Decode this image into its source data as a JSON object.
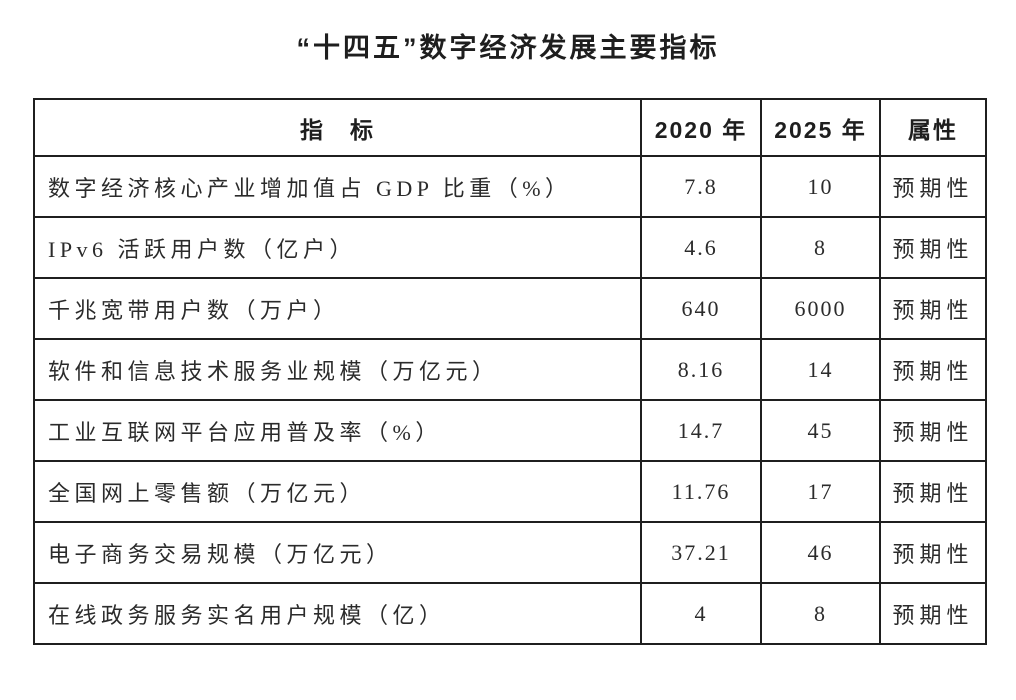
{
  "title": "“十四五”数字经济发展主要指标",
  "colors": {
    "background": "#ffffff",
    "text": "#2b2b2b",
    "border": "#1f1f1f"
  },
  "table": {
    "headers": {
      "indicator": "指　标",
      "y2020": "2020 年",
      "y2025": "2025 年",
      "attribute": "属性"
    },
    "rows": [
      {
        "indicator": "数字经济核心产业增加值占 GDP 比重（%）",
        "y2020": "7.8",
        "y2025": "10",
        "attribute": "预期性"
      },
      {
        "indicator": "IPv6 活跃用户数（亿户）",
        "y2020": "4.6",
        "y2025": "8",
        "attribute": "预期性"
      },
      {
        "indicator": "千兆宽带用户数（万户）",
        "y2020": "640",
        "y2025": "6000",
        "attribute": "预期性"
      },
      {
        "indicator": "软件和信息技术服务业规模（万亿元）",
        "y2020": "8.16",
        "y2025": "14",
        "attribute": "预期性"
      },
      {
        "indicator": "工业互联网平台应用普及率（%）",
        "y2020": "14.7",
        "y2025": "45",
        "attribute": "预期性"
      },
      {
        "indicator": "全国网上零售额（万亿元）",
        "y2020": "11.76",
        "y2025": "17",
        "attribute": "预期性"
      },
      {
        "indicator": "电子商务交易规模（万亿元）",
        "y2020": "37.21",
        "y2025": "46",
        "attribute": "预期性"
      },
      {
        "indicator": "在线政务服务实名用户规模（亿）",
        "y2020": "4",
        "y2025": "8",
        "attribute": "预期性"
      }
    ]
  }
}
